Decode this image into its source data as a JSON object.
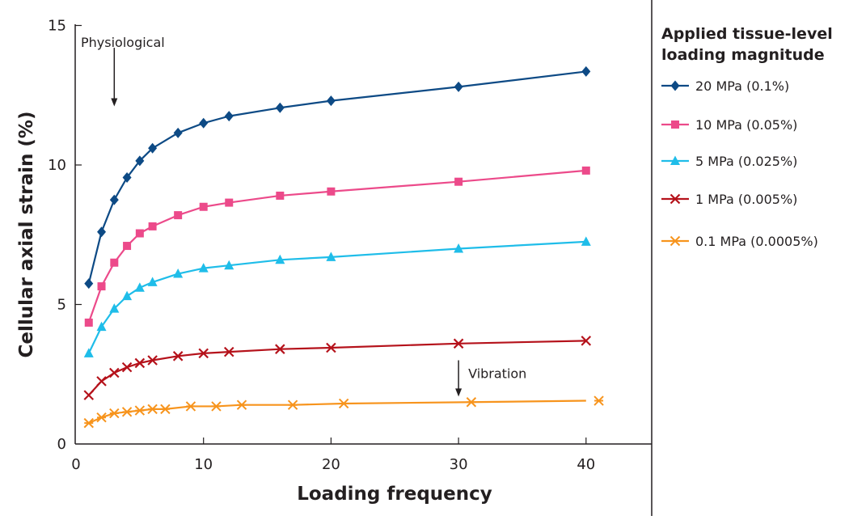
{
  "chart_data": {
    "type": "line",
    "xlabel": "Loading frequency",
    "ylabel": "Cellular axial strain (%)",
    "xlim": [
      0,
      45
    ],
    "ylim": [
      0,
      15
    ],
    "xticks": [
      "0",
      "10",
      "20",
      "30",
      "40"
    ],
    "yticks": [
      "0",
      "5",
      "10",
      "15"
    ],
    "legend_title": [
      "Applied tissue-level",
      "loading magnitude"
    ],
    "legend_position": "right",
    "annotations": [
      {
        "text": "Physiological",
        "x": 3,
        "y_from": 14.2,
        "y_to": 12.1
      },
      {
        "text": "Vibration",
        "x": 30,
        "y_from": 3.0,
        "y_to": 1.7
      }
    ],
    "series": [
      {
        "name": "20 MPa (0.1%)",
        "color": "#0d4a85",
        "marker": "diamond",
        "x": [
          1,
          2,
          3,
          4,
          5,
          6,
          8,
          10,
          12,
          16,
          20,
          30,
          40
        ],
        "y": [
          5.75,
          7.6,
          8.75,
          9.55,
          10.15,
          10.6,
          11.15,
          11.5,
          11.75,
          12.05,
          12.3,
          12.8,
          13.35
        ]
      },
      {
        "name": "10 MPa (0.05%)",
        "color": "#ec4a8a",
        "marker": "square",
        "x": [
          1,
          2,
          3,
          4,
          5,
          6,
          8,
          10,
          12,
          16,
          20,
          30,
          40
        ],
        "y": [
          4.35,
          5.65,
          6.5,
          7.1,
          7.55,
          7.8,
          8.2,
          8.5,
          8.65,
          8.9,
          9.05,
          9.4,
          9.8
        ]
      },
      {
        "name": "5 MPa (0.025%)",
        "color": "#1fbde9",
        "marker": "triangle",
        "x": [
          1,
          2,
          3,
          4,
          5,
          6,
          8,
          10,
          12,
          16,
          20,
          30,
          40
        ],
        "y": [
          3.25,
          4.2,
          4.85,
          5.3,
          5.6,
          5.8,
          6.1,
          6.3,
          6.4,
          6.6,
          6.7,
          7.0,
          7.25
        ]
      },
      {
        "name": "1 MPa (0.005%)",
        "color": "#b5121b",
        "marker": "x",
        "x": [
          1,
          2,
          3,
          4,
          5,
          6,
          8,
          10,
          12,
          16,
          20,
          30,
          40
        ],
        "y": [
          1.75,
          2.25,
          2.55,
          2.75,
          2.9,
          3.0,
          3.15,
          3.25,
          3.3,
          3.4,
          3.45,
          3.6,
          3.7
        ]
      },
      {
        "name": "0.1 MPa (0.0005%)",
        "color": "#f7941d",
        "marker": "asterisk",
        "x": [
          1,
          2,
          3,
          4,
          5,
          6,
          7,
          9,
          11,
          13,
          17,
          21,
          31,
          41
        ],
        "y": [
          0.75,
          0.95,
          1.1,
          1.15,
          1.2,
          1.25,
          1.25,
          1.35,
          1.35,
          1.4,
          1.4,
          1.45,
          1.5,
          1.55
        ]
      }
    ]
  }
}
